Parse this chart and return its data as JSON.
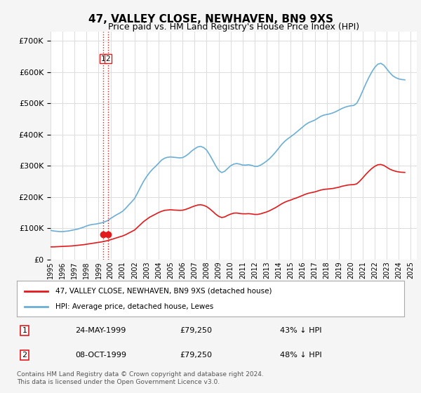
{
  "title": "47, VALLEY CLOSE, NEWHAVEN, BN9 9XS",
  "subtitle": "Price paid vs. HM Land Registry's House Price Index (HPI)",
  "ylabel_ticks": [
    "£0",
    "£100K",
    "£200K",
    "£300K",
    "£400K",
    "£500K",
    "£600K",
    "£700K"
  ],
  "ytick_values": [
    0,
    100000,
    200000,
    300000,
    400000,
    500000,
    600000,
    700000
  ],
  "ylim": [
    0,
    730000
  ],
  "xlim_start": 1995.0,
  "xlim_end": 2025.5,
  "hpi_color": "#6baed6",
  "price_color": "#e31a1c",
  "marker_color": "#e31a1c",
  "hpi_data": {
    "dates": [
      1995.0,
      1995.25,
      1995.5,
      1995.75,
      1996.0,
      1996.25,
      1996.5,
      1996.75,
      1997.0,
      1997.25,
      1997.5,
      1997.75,
      1998.0,
      1998.25,
      1998.5,
      1998.75,
      1999.0,
      1999.25,
      1999.5,
      1999.75,
      2000.0,
      2000.25,
      2000.5,
      2000.75,
      2001.0,
      2001.25,
      2001.5,
      2001.75,
      2002.0,
      2002.25,
      2002.5,
      2002.75,
      2003.0,
      2003.25,
      2003.5,
      2003.75,
      2004.0,
      2004.25,
      2004.5,
      2004.75,
      2005.0,
      2005.25,
      2005.5,
      2005.75,
      2006.0,
      2006.25,
      2006.5,
      2006.75,
      2007.0,
      2007.25,
      2007.5,
      2007.75,
      2008.0,
      2008.25,
      2008.5,
      2008.75,
      2009.0,
      2009.25,
      2009.5,
      2009.75,
      2010.0,
      2010.25,
      2010.5,
      2010.75,
      2011.0,
      2011.25,
      2011.5,
      2011.75,
      2012.0,
      2012.25,
      2012.5,
      2012.75,
      2013.0,
      2013.25,
      2013.5,
      2013.75,
      2014.0,
      2014.25,
      2014.5,
      2014.75,
      2015.0,
      2015.25,
      2015.5,
      2015.75,
      2016.0,
      2016.25,
      2016.5,
      2016.75,
      2017.0,
      2017.25,
      2017.5,
      2017.75,
      2018.0,
      2018.25,
      2018.5,
      2018.75,
      2019.0,
      2019.25,
      2019.5,
      2019.75,
      2020.0,
      2020.25,
      2020.5,
      2020.75,
      2021.0,
      2021.25,
      2021.5,
      2021.75,
      2022.0,
      2022.25,
      2022.5,
      2022.75,
      2023.0,
      2023.25,
      2023.5,
      2023.75,
      2024.0,
      2024.25,
      2024.5
    ],
    "values": [
      93000,
      91000,
      90000,
      89000,
      89000,
      90000,
      91000,
      93000,
      95000,
      97000,
      100000,
      103000,
      107000,
      110000,
      112000,
      113000,
      115000,
      117000,
      120000,
      124000,
      131000,
      137000,
      143000,
      148000,
      154000,
      163000,
      174000,
      184000,
      195000,
      213000,
      232000,
      250000,
      265000,
      278000,
      289000,
      298000,
      308000,
      318000,
      324000,
      327000,
      328000,
      327000,
      326000,
      325000,
      326000,
      331000,
      338000,
      347000,
      354000,
      360000,
      362000,
      358000,
      350000,
      335000,
      318000,
      300000,
      285000,
      278000,
      282000,
      291000,
      300000,
      305000,
      307000,
      305000,
      302000,
      302000,
      303000,
      301000,
      298000,
      298000,
      302000,
      308000,
      315000,
      323000,
      333000,
      344000,
      356000,
      368000,
      378000,
      386000,
      393000,
      400000,
      408000,
      416000,
      424000,
      432000,
      438000,
      442000,
      446000,
      452000,
      458000,
      462000,
      464000,
      466000,
      469000,
      473000,
      478000,
      483000,
      487000,
      490000,
      492000,
      493000,
      500000,
      518000,
      540000,
      562000,
      582000,
      600000,
      615000,
      625000,
      628000,
      622000,
      610000,
      598000,
      588000,
      582000,
      578000,
      576000,
      575000
    ]
  },
  "price_data": {
    "dates": [
      1995.0,
      1995.25,
      1995.5,
      1995.75,
      1996.0,
      1996.25,
      1996.5,
      1996.75,
      1997.0,
      1997.25,
      1997.5,
      1997.75,
      1998.0,
      1998.25,
      1998.5,
      1998.75,
      1999.0,
      1999.25,
      1999.5,
      1999.75,
      2000.0,
      2000.25,
      2000.5,
      2000.75,
      2001.0,
      2001.25,
      2001.5,
      2001.75,
      2002.0,
      2002.25,
      2002.5,
      2002.75,
      2003.0,
      2003.25,
      2003.5,
      2003.75,
      2004.0,
      2004.25,
      2004.5,
      2004.75,
      2005.0,
      2005.25,
      2005.5,
      2005.75,
      2006.0,
      2006.25,
      2006.5,
      2006.75,
      2007.0,
      2007.25,
      2007.5,
      2007.75,
      2008.0,
      2008.25,
      2008.5,
      2008.75,
      2009.0,
      2009.25,
      2009.5,
      2009.75,
      2010.0,
      2010.25,
      2010.5,
      2010.75,
      2011.0,
      2011.25,
      2011.5,
      2011.75,
      2012.0,
      2012.25,
      2012.5,
      2012.75,
      2013.0,
      2013.25,
      2013.5,
      2013.75,
      2014.0,
      2014.25,
      2014.5,
      2014.75,
      2015.0,
      2015.25,
      2015.5,
      2015.75,
      2016.0,
      2016.25,
      2016.5,
      2016.75,
      2017.0,
      2017.25,
      2017.5,
      2017.75,
      2018.0,
      2018.25,
      2018.5,
      2018.75,
      2019.0,
      2019.25,
      2019.5,
      2019.75,
      2020.0,
      2020.25,
      2020.5,
      2020.75,
      2021.0,
      2021.25,
      2021.5,
      2021.75,
      2022.0,
      2022.25,
      2022.5,
      2022.75,
      2023.0,
      2023.25,
      2023.5,
      2023.75,
      2024.0,
      2024.25,
      2024.5
    ],
    "values": [
      40000,
      40000,
      40500,
      41000,
      41500,
      42000,
      42500,
      43000,
      44000,
      45000,
      46000,
      47000,
      48500,
      50000,
      51500,
      53000,
      54500,
      56000,
      58000,
      60000,
      63000,
      66000,
      69000,
      72000,
      75000,
      79000,
      84000,
      89000,
      94000,
      103000,
      112000,
      121000,
      128000,
      135000,
      140000,
      145000,
      150000,
      154000,
      157000,
      158000,
      159000,
      158000,
      157500,
      157000,
      157500,
      160000,
      163500,
      167500,
      171000,
      174000,
      175000,
      173000,
      169000,
      162000,
      154000,
      145000,
      138000,
      134000,
      136000,
      141000,
      145000,
      148000,
      148500,
      147000,
      146000,
      146000,
      146500,
      145500,
      144000,
      144000,
      146000,
      149000,
      152000,
      156000,
      161000,
      166000,
      172000,
      178000,
      183000,
      187000,
      190000,
      194000,
      197000,
      201000,
      205000,
      209000,
      212000,
      214000,
      216000,
      219000,
      222000,
      224000,
      225000,
      226000,
      227000,
      229000,
      231000,
      234000,
      236000,
      238000,
      239000,
      239500,
      242000,
      250500,
      261000,
      272000,
      282000,
      291000,
      298000,
      303000,
      304000,
      301000,
      295000,
      289000,
      285000,
      282000,
      280000,
      279000,
      278500
    ]
  },
  "sales": [
    {
      "date": 1999.38,
      "price": 79250,
      "label": "1"
    },
    {
      "date": 1999.77,
      "price": 79250,
      "label": "2"
    }
  ],
  "legend_entries": [
    {
      "label": "47, VALLEY CLOSE, NEWHAVEN, BN9 9XS (detached house)",
      "color": "#e31a1c"
    },
    {
      "label": "HPI: Average price, detached house, Lewes",
      "color": "#6baed6"
    }
  ],
  "table_rows": [
    [
      "1",
      "24-MAY-1999",
      "£79,250",
      "43% ↓ HPI"
    ],
    [
      "2",
      "08-OCT-1999",
      "£79,250",
      "48% ↓ HPI"
    ]
  ],
  "footnote": "Contains HM Land Registry data © Crown copyright and database right 2024.\nThis data is licensed under the Open Government Licence v3.0.",
  "bg_color": "#f5f5f5",
  "plot_bg_color": "#ffffff",
  "grid_color": "#dddddd",
  "title_fontsize": 11,
  "subtitle_fontsize": 9
}
